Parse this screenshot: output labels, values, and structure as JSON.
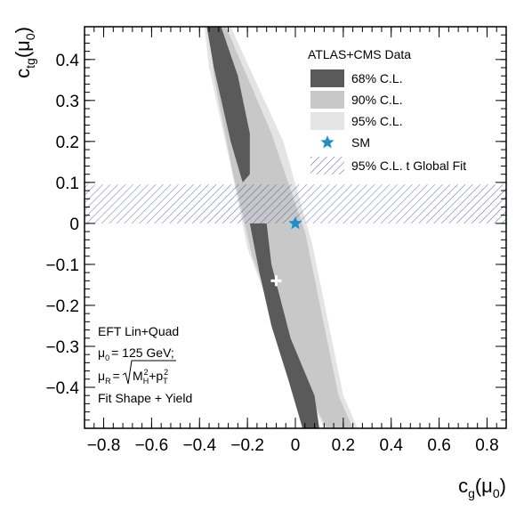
{
  "chart_data": {
    "type": "contour",
    "x": {
      "label_main": "c",
      "label_sub": "g",
      "label_paren_open": "(μ",
      "label_paren_sub": "0",
      "label_paren_close": ")",
      "lim": [
        -0.88,
        0.88
      ],
      "ticks": [
        -0.8,
        -0.6,
        -0.4,
        -0.2,
        0,
        0.2,
        0.4,
        0.6,
        0.8
      ],
      "tick_labels": [
        "−0.8",
        "−0.6",
        "−0.4",
        "−0.2",
        "0",
        "0.2",
        "0.4",
        "0.6",
        "0.8"
      ]
    },
    "y": {
      "label_main": "c",
      "label_sub": "tg",
      "label_paren_open": "(μ",
      "label_paren_sub": "0",
      "label_paren_close": ")",
      "lim": [
        -0.5,
        0.48
      ],
      "ticks": [
        -0.4,
        -0.3,
        -0.2,
        -0.1,
        0,
        0.1,
        0.2,
        0.3,
        0.4
      ],
      "tick_labels": [
        "−0.4",
        "−0.3",
        "−0.2",
        "−0.1",
        "0",
        "0.1",
        "0.2",
        "0.3",
        "0.4"
      ]
    },
    "legend_title": "ATLAS+CMS Data",
    "legend": [
      {
        "label": "68% C.L.",
        "kind": "fill",
        "color": "#5a5a5a"
      },
      {
        "label": "90% C.L.",
        "kind": "fill",
        "color": "#c8c8c8"
      },
      {
        "label": "95% C.L.",
        "kind": "fill",
        "color": "#e4e4e4"
      },
      {
        "label": "SM",
        "kind": "star",
        "color": "#1f8fc8"
      },
      {
        "label": "95% C.L. t Global Fit",
        "kind": "hatch",
        "color": "#4b5aa8"
      }
    ],
    "legend_position": "top-right",
    "regions": {
      "cl95": [
        [
          -0.38,
          0.48
        ],
        [
          -0.27,
          0.48
        ],
        [
          -0.05,
          0.2
        ],
        [
          0.07,
          -0.05
        ],
        [
          0.2,
          -0.42
        ],
        [
          0.26,
          -0.5
        ],
        [
          0.12,
          -0.5
        ],
        [
          -0.06,
          -0.28
        ],
        [
          -0.2,
          -0.06
        ],
        [
          -0.27,
          0.14
        ],
        [
          -0.36,
          0.38
        ]
      ],
      "cl90": [
        [
          -0.36,
          0.48
        ],
        [
          -0.29,
          0.48
        ],
        [
          -0.1,
          0.22
        ],
        [
          0.04,
          -0.02
        ],
        [
          0.18,
          -0.42
        ],
        [
          0.24,
          -0.5
        ],
        [
          0.13,
          -0.5
        ],
        [
          -0.04,
          -0.3
        ],
        [
          -0.18,
          -0.08
        ],
        [
          -0.26,
          0.12
        ],
        [
          -0.34,
          0.36
        ]
      ],
      "cl68_lower": [
        [
          -0.19,
          0.0
        ],
        [
          -0.12,
          0.0
        ],
        [
          -0.1,
          -0.1
        ],
        [
          -0.02,
          -0.28
        ],
        [
          0.08,
          -0.42
        ],
        [
          0.1,
          -0.5
        ],
        [
          0.03,
          -0.5
        ],
        [
          -0.03,
          -0.38
        ],
        [
          -0.1,
          -0.25
        ],
        [
          -0.15,
          -0.12
        ]
      ],
      "cl68_upper": [
        [
          -0.37,
          0.48
        ],
        [
          -0.31,
          0.48
        ],
        [
          -0.24,
          0.36
        ],
        [
          -0.19,
          0.22
        ],
        [
          -0.19,
          0.12
        ],
        [
          -0.22,
          0.1
        ],
        [
          -0.27,
          0.2
        ],
        [
          -0.34,
          0.38
        ]
      ]
    },
    "global_fit_band": [
      0.0,
      0.095
    ],
    "sm_point": {
      "x": 0.0,
      "y": 0.0
    },
    "best_fit": {
      "x": -0.08,
      "y": -0.14
    },
    "annotation": {
      "line1": "EFT Lin+Quad",
      "line2_main": "μ",
      "line2_sub": "0",
      "line2_rest": "= 125 GeV;",
      "line3_main": "μ",
      "line3_sub": "R",
      "line3_eq": "=",
      "line3_m": "M",
      "line3_msup": "2",
      "line3_msub": "H",
      "line3_plus": "+p",
      "line3_psup": "2",
      "line3_psub": "T",
      "line4": "Fit Shape + Yield"
    },
    "grid": false
  }
}
